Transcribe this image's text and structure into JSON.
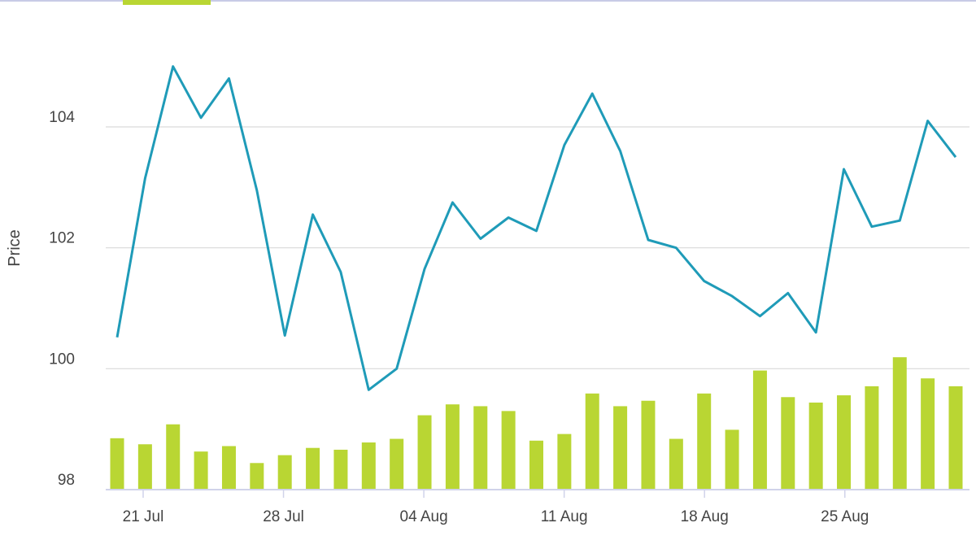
{
  "chart_data": {
    "type": "line+bar",
    "ylabel": "Price",
    "ylim": [
      98,
      105.8
    ],
    "y_ticks": [
      98,
      100,
      102,
      104
    ],
    "x_ticks": [
      "21 Jul",
      "28 Jul",
      "04 Aug",
      "11 Aug",
      "18 Aug",
      "25 Aug"
    ],
    "dates": [
      "2023-07-20",
      "2023-07-21",
      "2023-07-22",
      "2023-07-23",
      "2023-07-24",
      "2023-07-25",
      "2023-07-26",
      "2023-07-27",
      "2023-07-28",
      "2023-07-29",
      "2023-07-30",
      "2023-07-31",
      "2023-08-01",
      "2023-08-02",
      "2023-08-03",
      "2023-08-04",
      "2023-08-05",
      "2023-08-06",
      "2023-08-07",
      "2023-08-08",
      "2023-08-09",
      "2023-08-10",
      "2023-08-11",
      "2023-08-12",
      "2023-08-13",
      "2023-08-14",
      "2023-08-15",
      "2023-08-16",
      "2023-08-17",
      "2023-08-18",
      "2023-08-19",
      "2023-08-20",
      "2023-08-21",
      "2023-08-22",
      "2023-08-23",
      "2023-08-24",
      "2023-08-25",
      "2023-08-26",
      "2023-08-27",
      "2023-08-28",
      "2023-08-29",
      "2023-08-30",
      "2023-08-31",
      "2023-09-01"
    ],
    "series": [
      {
        "type": "line",
        "color": "#1f9bb8",
        "points": [
          [
            "2023-07-20",
            100.52
          ],
          [
            "2023-07-21",
            103.15
          ],
          [
            "2023-07-22",
            105.0
          ],
          [
            "2023-07-23",
            104.15
          ],
          [
            "2023-07-24",
            104.8
          ],
          [
            "2023-07-25",
            102.95
          ],
          [
            "2023-07-27",
            100.55
          ],
          [
            "2023-07-28",
            102.55
          ],
          [
            "2023-07-29",
            101.6
          ],
          [
            "2023-07-31",
            99.65
          ],
          [
            "2023-08-01",
            100.0
          ],
          [
            "2023-08-02",
            101.65
          ],
          [
            "2023-08-03",
            102.75
          ],
          [
            "2023-08-04",
            102.15
          ],
          [
            "2023-08-05",
            102.5
          ],
          [
            "2023-08-06",
            102.28
          ],
          [
            "2023-08-07",
            103.7
          ],
          [
            "2023-08-08",
            104.55
          ],
          [
            "2023-08-10",
            103.6
          ],
          [
            "2023-08-11",
            102.13
          ],
          [
            "2023-08-12",
            102.0
          ],
          [
            "2023-08-13",
            101.45
          ],
          [
            "2023-08-14",
            101.2
          ],
          [
            "2023-08-15",
            100.87
          ],
          [
            "2023-08-16",
            101.25
          ],
          [
            "2023-08-17",
            100.6
          ],
          [
            "2023-08-18",
            103.3
          ],
          [
            "2023-08-19",
            102.35
          ],
          [
            "2023-08-20",
            102.45
          ],
          [
            "2023-08-21",
            104.1
          ],
          [
            "2023-08-22",
            103.5
          ]
        ]
      },
      {
        "type": "bar",
        "color": "#b9d633",
        "points": [
          [
            "2023-07-20",
            98.85
          ],
          [
            "2023-07-21",
            98.75
          ],
          [
            "2023-07-22",
            99.08
          ],
          [
            "2023-07-23",
            98.63
          ],
          [
            "2023-07-24",
            98.72
          ],
          [
            "2023-07-25",
            98.44
          ],
          [
            "2023-07-26",
            98.57
          ],
          [
            "2023-07-27",
            98.69
          ],
          [
            "2023-07-28",
            98.66
          ],
          [
            "2023-07-29",
            98.78
          ],
          [
            "2023-07-30",
            98.84
          ],
          [
            "2023-07-31",
            99.23
          ],
          [
            "2023-08-01",
            99.41
          ],
          [
            "2023-08-02",
            99.38
          ],
          [
            "2023-08-03",
            99.3
          ],
          [
            "2023-08-04",
            98.81
          ],
          [
            "2023-08-05",
            98.92
          ],
          [
            "2023-08-06",
            99.59
          ],
          [
            "2023-08-07",
            99.38
          ],
          [
            "2023-08-08",
            99.47
          ],
          [
            "2023-08-09",
            98.84
          ],
          [
            "2023-08-10",
            99.59
          ],
          [
            "2023-08-11",
            98.99
          ],
          [
            "2023-08-12",
            99.97
          ],
          [
            "2023-08-13",
            99.53
          ],
          [
            "2023-08-14",
            99.44
          ],
          [
            "2023-08-15",
            99.56
          ],
          [
            "2023-08-16",
            99.71
          ],
          [
            "2023-08-17",
            100.19
          ],
          [
            "2023-08-18",
            99.84
          ],
          [
            "2023-08-19",
            99.71
          ]
        ]
      }
    ],
    "grid": true,
    "legend": "none"
  }
}
